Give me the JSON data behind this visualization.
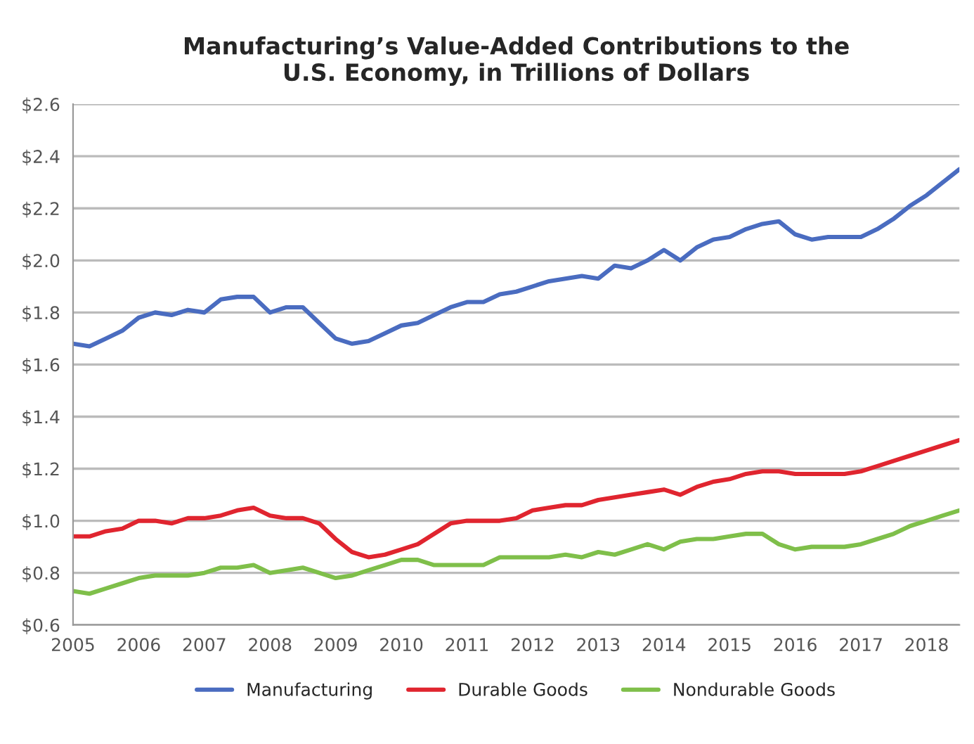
{
  "chart_data": {
    "type": "line",
    "title": "Manufacturing’s Value-Added Contributions to the\nU.S. Economy, in Trillions of Dollars",
    "x": [
      2005.0,
      2005.25,
      2005.5,
      2005.75,
      2006.0,
      2006.25,
      2006.5,
      2006.75,
      2007.0,
      2007.25,
      2007.5,
      2007.75,
      2008.0,
      2008.25,
      2008.5,
      2008.75,
      2009.0,
      2009.25,
      2009.5,
      2009.75,
      2010.0,
      2010.25,
      2010.5,
      2010.75,
      2011.0,
      2011.25,
      2011.5,
      2011.75,
      2012.0,
      2012.25,
      2012.5,
      2012.75,
      2013.0,
      2013.25,
      2013.5,
      2013.75,
      2014.0,
      2014.25,
      2014.5,
      2014.75,
      2015.0,
      2015.25,
      2015.5,
      2015.75,
      2016.0,
      2016.25,
      2016.5,
      2016.75,
      2017.0,
      2017.25,
      2017.5,
      2017.75,
      2018.0,
      2018.25,
      2018.5
    ],
    "series": [
      {
        "name": "Manufacturing",
        "color": "#4a6cc0",
        "values": [
          1.68,
          1.67,
          1.7,
          1.73,
          1.78,
          1.8,
          1.79,
          1.81,
          1.8,
          1.85,
          1.86,
          1.86,
          1.8,
          1.82,
          1.82,
          1.76,
          1.7,
          1.68,
          1.69,
          1.72,
          1.75,
          1.76,
          1.79,
          1.82,
          1.84,
          1.84,
          1.87,
          1.88,
          1.9,
          1.92,
          1.93,
          1.94,
          1.93,
          1.98,
          1.97,
          2.0,
          2.04,
          2.0,
          2.05,
          2.08,
          2.09,
          2.12,
          2.14,
          2.15,
          2.1,
          2.08,
          2.09,
          2.09,
          2.09,
          2.12,
          2.16,
          2.21,
          2.25,
          2.3,
          2.35
        ]
      },
      {
        "name": "Durable Goods",
        "color": "#e0252f",
        "values": [
          0.94,
          0.94,
          0.96,
          0.97,
          1.0,
          1.0,
          0.99,
          1.01,
          1.01,
          1.02,
          1.04,
          1.05,
          1.02,
          1.01,
          1.01,
          0.99,
          0.93,
          0.88,
          0.86,
          0.87,
          0.89,
          0.91,
          0.95,
          0.99,
          1.0,
          1.0,
          1.0,
          1.01,
          1.04,
          1.05,
          1.06,
          1.06,
          1.08,
          1.09,
          1.1,
          1.11,
          1.12,
          1.1,
          1.13,
          1.15,
          1.16,
          1.18,
          1.19,
          1.19,
          1.18,
          1.18,
          1.18,
          1.18,
          1.19,
          1.21,
          1.23,
          1.25,
          1.27,
          1.29,
          1.31
        ]
      },
      {
        "name": "Nondurable Goods",
        "color": "#7fbf4a",
        "values": [
          0.73,
          0.72,
          0.74,
          0.76,
          0.78,
          0.79,
          0.79,
          0.79,
          0.8,
          0.82,
          0.82,
          0.83,
          0.8,
          0.81,
          0.82,
          0.8,
          0.78,
          0.79,
          0.81,
          0.83,
          0.85,
          0.85,
          0.83,
          0.83,
          0.83,
          0.83,
          0.86,
          0.86,
          0.86,
          0.86,
          0.87,
          0.86,
          0.88,
          0.87,
          0.89,
          0.91,
          0.89,
          0.92,
          0.93,
          0.93,
          0.94,
          0.95,
          0.95,
          0.91,
          0.89,
          0.9,
          0.9,
          0.9,
          0.91,
          0.93,
          0.95,
          0.98,
          1.0,
          1.02,
          1.04
        ]
      }
    ],
    "xlim": [
      2005,
      2018.5
    ],
    "xticks": [
      2005,
      2006,
      2007,
      2008,
      2009,
      2010,
      2011,
      2012,
      2013,
      2014,
      2015,
      2016,
      2017,
      2018
    ],
    "ylim": [
      0.6,
      2.6
    ],
    "yticks": [
      {
        "value": 0.6,
        "label": "$0.6"
      },
      {
        "value": 0.8,
        "label": "$0.8"
      },
      {
        "value": 1.0,
        "label": "$1.0"
      },
      {
        "value": 1.2,
        "label": "$1.2"
      },
      {
        "value": 1.4,
        "label": "$1.4"
      },
      {
        "value": 1.6,
        "label": "$1.6"
      },
      {
        "value": 1.8,
        "label": "$1.8"
      },
      {
        "value": 2.0,
        "label": "$2.0"
      },
      {
        "value": 2.2,
        "label": "$2.2"
      },
      {
        "value": 2.4,
        "label": "$2.4"
      },
      {
        "value": 2.6,
        "label": "$2.6"
      }
    ],
    "grid": "y",
    "legend": "bottom",
    "line_style": "solid"
  }
}
